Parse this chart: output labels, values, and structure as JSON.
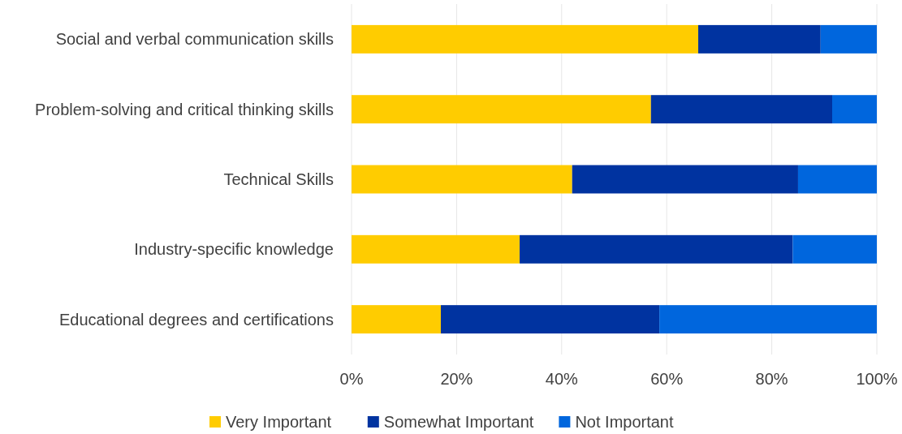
{
  "chart_data": {
    "type": "bar",
    "orientation": "horizontal",
    "stacked": true,
    "categories": [
      "Social and verbal communication skills",
      "Problem-solving and critical thinking skills",
      "Technical Skills",
      "Industry-specific knowledge",
      "Educational degrees and certifications"
    ],
    "series": [
      {
        "name": "Very Important",
        "color": "#ffcc00",
        "values": [
          66,
          57,
          42,
          32,
          17
        ]
      },
      {
        "name": "Somewhat Important",
        "color": "#0033a0",
        "values": [
          23.3,
          34.5,
          43,
          52,
          41.6
        ]
      },
      {
        "name": "Not Important",
        "color": "#0066dd",
        "values": [
          10.7,
          8.5,
          15,
          16,
          41.4
        ]
      }
    ],
    "xlim": [
      0,
      100
    ],
    "xticks": [
      {
        "value": 0,
        "label": "0%"
      },
      {
        "value": 20,
        "label": "20%"
      },
      {
        "value": 40,
        "label": "40%"
      },
      {
        "value": 60,
        "label": "60%"
      },
      {
        "value": 80,
        "label": "80%"
      },
      {
        "value": 100,
        "label": "100%"
      }
    ],
    "grid": "x",
    "legend": "bottom"
  }
}
